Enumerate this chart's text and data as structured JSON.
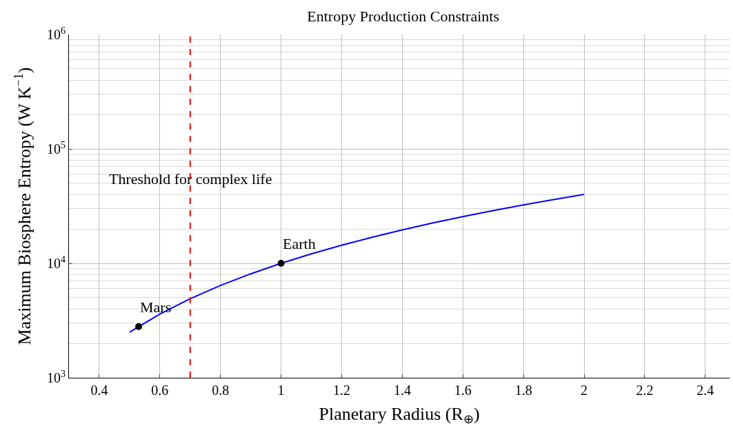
{
  "chart_data": {
    "type": "line",
    "title": "Entropy Production Constraints",
    "xlabel": "Planetary Radius (R$_{⊕}$)",
    "ylabel": "Maximum Biosphere Entropy (W K$^{−1}$)",
    "series": [
      {
        "color": "#0000ff",
        "x": [
          0.5,
          0.6,
          0.7,
          0.8,
          0.9,
          1.0,
          1.1,
          1.2,
          1.3,
          1.4,
          1.5,
          1.6,
          1.7,
          1.8,
          1.9,
          2.0
        ],
        "values": [
          2500,
          3600,
          4900,
          6400,
          8100,
          10000,
          12100,
          14400,
          16900,
          19600,
          22500,
          25600,
          28900,
          32400,
          36100,
          40000
        ],
        "marker": "none",
        "line_style": "solid"
      },
      {
        "type": "scatter",
        "color": "#000000",
        "x": [
          0.53,
          1.0
        ],
        "values": [
          2800,
          10000
        ],
        "marker": "circle"
      }
    ],
    "annotations": [
      {
        "text": "Mars",
        "x": 0.53,
        "y": 2800
      },
      {
        "text": "Earth",
        "x": 1.0,
        "y": 10000
      }
    ],
    "ref_lines": [
      {
        "axis": "x",
        "value": 0.7,
        "label": "Threshold for complex life",
        "color": "#ff0000",
        "line_style": "dashed"
      }
    ],
    "xlim": [
      0.3,
      2.48
    ],
    "xticks": [
      0.4,
      0.6,
      0.8,
      1,
      1.2,
      1.4,
      1.6,
      1.8,
      2,
      2.2,
      2.4
    ],
    "ylim": [
      1000,
      1000000
    ],
    "yticks": [
      {
        "value": 1000,
        "label": "10$^{3}$"
      },
      {
        "value": 10000,
        "label": "10$^{4}$"
      },
      {
        "value": 100000,
        "label": "10$^{5}$"
      },
      {
        "value": 1000000,
        "label": "10$^{6}$"
      }
    ],
    "log": "y",
    "grid": true
  }
}
